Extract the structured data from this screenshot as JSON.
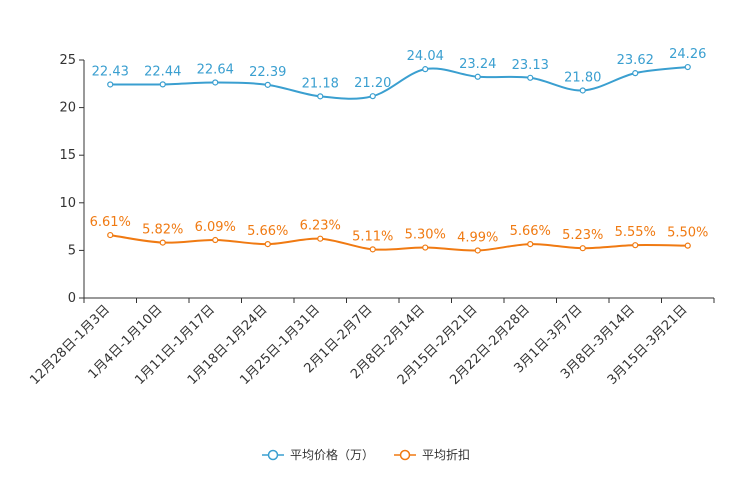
{
  "chart_data": {
    "type": "line",
    "title": "",
    "xlabel": "",
    "ylabel": "",
    "ylim": [
      0,
      25
    ],
    "yticks": [
      0,
      5,
      10,
      15,
      20,
      25
    ],
    "grid": false,
    "legend_position": "bottom-center",
    "categories": [
      "12月28日-1月3日",
      "1月4日-1月10日",
      "1月11日-1月17日",
      "1月18日-1月24日",
      "1月25日-1月31日",
      "2月1日-2月7日",
      "2月8日-2月14日",
      "2月15日-2月21日",
      "2月22日-2月28日",
      "3月1日-3月7日",
      "3月8日-3月14日",
      "3月15日-3月21日"
    ],
    "series": [
      {
        "name": "平均价格（万）",
        "color": "#3a9fd0",
        "values": [
          22.43,
          22.44,
          22.64,
          22.39,
          21.18,
          21.2,
          24.04,
          23.24,
          23.13,
          21.8,
          23.62,
          24.26
        ],
        "labels": [
          "22.43",
          "22.44",
          "22.64",
          "22.39",
          "21.18",
          "21.20",
          "24.04",
          "23.24",
          "23.13",
          "21.80",
          "23.62",
          "24.26"
        ]
      },
      {
        "name": "平均折扣",
        "color": "#f07a12",
        "values": [
          6.61,
          5.82,
          6.09,
          5.66,
          6.23,
          5.11,
          5.3,
          4.99,
          5.66,
          5.23,
          5.55,
          5.5
        ],
        "labels": [
          "6.61%",
          "5.82%",
          "6.09%",
          "5.66%",
          "6.23%",
          "5.11%",
          "5.30%",
          "4.99%",
          "5.66%",
          "5.23%",
          "5.55%",
          "5.50%"
        ]
      }
    ]
  }
}
